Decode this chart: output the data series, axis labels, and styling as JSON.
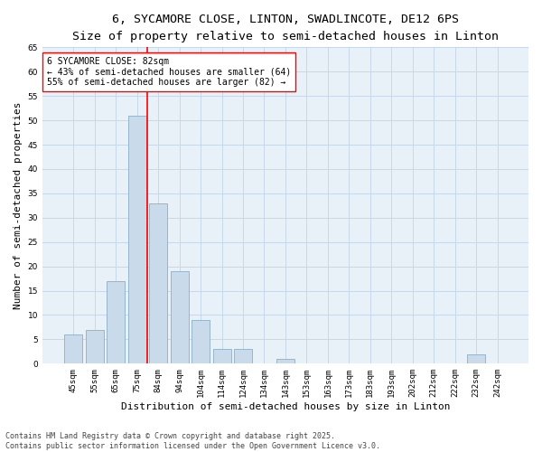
{
  "title_line1": "6, SYCAMORE CLOSE, LINTON, SWADLINCOTE, DE12 6PS",
  "title_line2": "Size of property relative to semi-detached houses in Linton",
  "xlabel": "Distribution of semi-detached houses by size in Linton",
  "ylabel": "Number of semi-detached properties",
  "bar_color": "#c9daea",
  "bar_edge_color": "#8aafc8",
  "grid_color": "#c5d8ea",
  "background_color": "#e8f0f8",
  "categories": [
    "45sqm",
    "55sqm",
    "65sqm",
    "75sqm",
    "84sqm",
    "94sqm",
    "104sqm",
    "114sqm",
    "124sqm",
    "134sqm",
    "143sqm",
    "153sqm",
    "163sqm",
    "173sqm",
    "183sqm",
    "193sqm",
    "202sqm",
    "212sqm",
    "222sqm",
    "232sqm",
    "242sqm"
  ],
  "values": [
    6,
    7,
    17,
    51,
    33,
    19,
    9,
    3,
    3,
    0,
    1,
    0,
    0,
    0,
    0,
    0,
    0,
    0,
    0,
    2,
    0
  ],
  "vline_color": "red",
  "vline_position": 3.5,
  "annotation_text": "6 SYCAMORE CLOSE: 82sqm\n← 43% of semi-detached houses are smaller (64)\n55% of semi-detached houses are larger (82) →",
  "annotation_box_color": "white",
  "annotation_box_edge_color": "red",
  "ylim": [
    0,
    65
  ],
  "yticks": [
    0,
    5,
    10,
    15,
    20,
    25,
    30,
    35,
    40,
    45,
    50,
    55,
    60,
    65
  ],
  "title_fontsize": 9.5,
  "subtitle_fontsize": 8.5,
  "axis_label_fontsize": 8,
  "tick_fontsize": 6.5,
  "annotation_fontsize": 7,
  "footer_fontsize": 6,
  "ylabel_fontsize": 8,
  "footer_text": "Contains HM Land Registry data © Crown copyright and database right 2025.\nContains public sector information licensed under the Open Government Licence v3.0."
}
